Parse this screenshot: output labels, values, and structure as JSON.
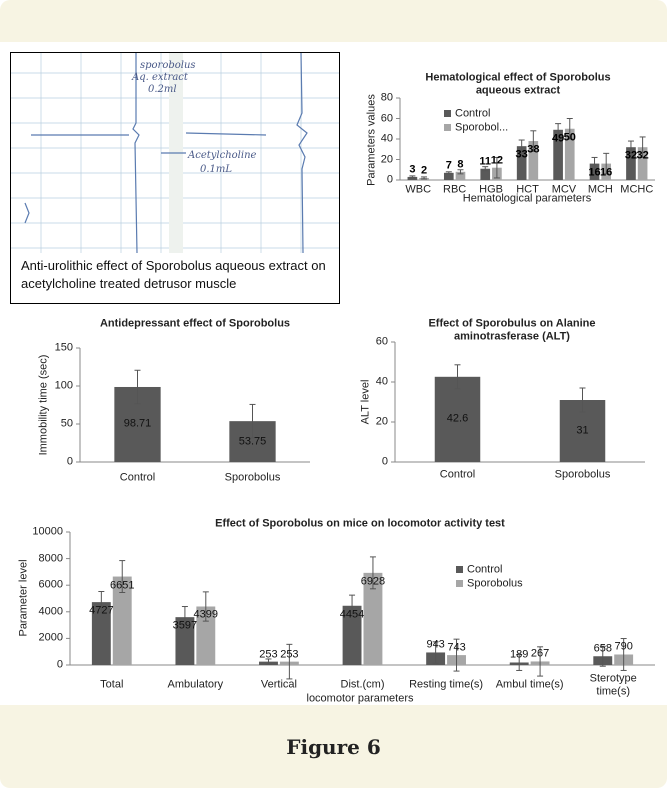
{
  "figure_caption": "Figure 6",
  "photo": {
    "caption": "Anti-urolithic effect of Sporobolus aqueous extract on acetylcholine treated detrusor muscle",
    "annotations": [
      "sporobolus",
      "Aq. extract",
      "0.2ml",
      "Acetylcholine",
      "0.1mL"
    ]
  },
  "chart_data": [
    {
      "type": "bar",
      "title": "Hematological effect of Sporobolus aqueous extract",
      "y_label": "Parameters values",
      "x_label": "Hematological parameters",
      "categories": [
        "WBC",
        "RBC",
        "HGB",
        "HCT",
        "MCV",
        "MCH",
        "MCHC"
      ],
      "series": [
        {
          "name": "Control",
          "color": "#595959",
          "values": [
            3,
            7,
            11,
            33,
            49,
            16,
            32
          ],
          "errors": [
            1,
            1,
            2,
            6,
            6,
            6,
            6
          ]
        },
        {
          "name": "Sporobol...",
          "color": "#a6a6a6",
          "values": [
            2,
            8,
            12,
            38,
            50,
            16,
            32
          ],
          "errors": [
            1,
            2,
            10,
            10,
            10,
            10,
            10
          ]
        }
      ],
      "ylim": [
        0,
        80
      ],
      "yticks": [
        0,
        20,
        40,
        60,
        80
      ]
    },
    {
      "type": "bar",
      "title": "Antidepressant effect of Sporobolus",
      "y_label": "Immobility time (sec)",
      "categories": [
        "Control",
        "Sporobolus"
      ],
      "values": [
        98.71,
        53.75
      ],
      "errors": [
        22,
        22
      ],
      "color": "#595959",
      "ylim": [
        0,
        150
      ],
      "yticks": [
        0,
        50,
        100,
        150
      ]
    },
    {
      "type": "bar",
      "title": "Effect of Sporobulus on Alanine aminotrasferase (ALT)",
      "y_label": "ALT level",
      "categories": [
        "Control",
        "Sporobolus"
      ],
      "values": [
        42.6,
        31
      ],
      "errors": [
        6,
        6
      ],
      "color": "#595959",
      "ylim": [
        0,
        60
      ],
      "yticks": [
        0,
        20,
        40,
        60
      ]
    },
    {
      "type": "bar",
      "title": "Effect of Sporobolus on mice on locomotor activity test",
      "y_label": "Parameter level",
      "x_label": "locomotor parameters",
      "categories": [
        "Total",
        "Ambulatory",
        "Vertical",
        "Dist.(cm)",
        "Resting time(s)",
        "Ambul time(s)",
        "Sterotype time(s)"
      ],
      "series": [
        {
          "name": "Control",
          "color": "#595959",
          "values": [
            4727,
            3597,
            253,
            4454,
            943,
            189,
            658
          ],
          "errors": [
            800,
            800,
            200,
            800,
            800,
            600,
            750
          ]
        },
        {
          "name": "Sporobolus",
          "color": "#a6a6a6",
          "values": [
            6651,
            4399,
            253,
            6928,
            743,
            267,
            790
          ],
          "errors": [
            1200,
            1100,
            1300,
            1200,
            1200,
            1100,
            1200
          ]
        }
      ],
      "ylim": [
        0,
        10000
      ],
      "yticks": [
        0,
        2000,
        4000,
        6000,
        8000,
        10000
      ]
    }
  ]
}
